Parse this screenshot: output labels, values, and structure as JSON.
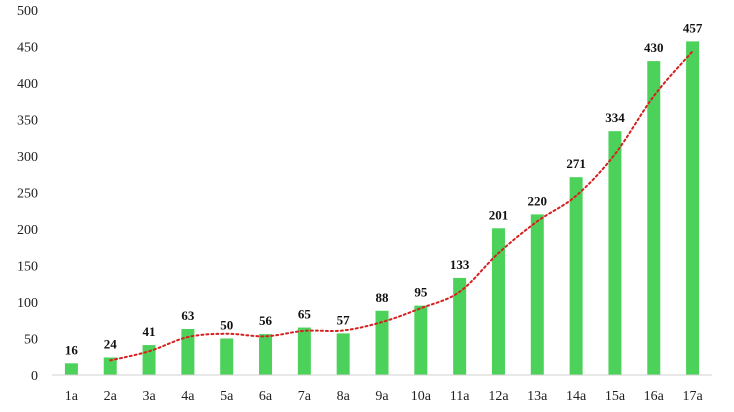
{
  "chart_data": {
    "type": "bar",
    "categories": [
      "1a",
      "2a",
      "3a",
      "4a",
      "5a",
      "6a",
      "7a",
      "8a",
      "9a",
      "10a",
      "11a",
      "12a",
      "13a",
      "14a",
      "15a",
      "16a",
      "17a"
    ],
    "values": [
      16,
      24,
      41,
      63,
      50,
      56,
      65,
      57,
      88,
      95,
      133,
      201,
      220,
      271,
      334,
      430,
      457
    ],
    "ylim": [
      0,
      500
    ],
    "yticks": [
      0,
      50,
      100,
      150,
      200,
      250,
      300,
      350,
      400,
      450,
      500
    ],
    "data_labels": true,
    "grid": false,
    "trendline": {
      "type": "moving-average",
      "period": 2,
      "style": "dotted"
    },
    "colors": {
      "bar": "#4cd25a",
      "trendline": "#d62020",
      "axis": "#d0d0d0"
    }
  }
}
